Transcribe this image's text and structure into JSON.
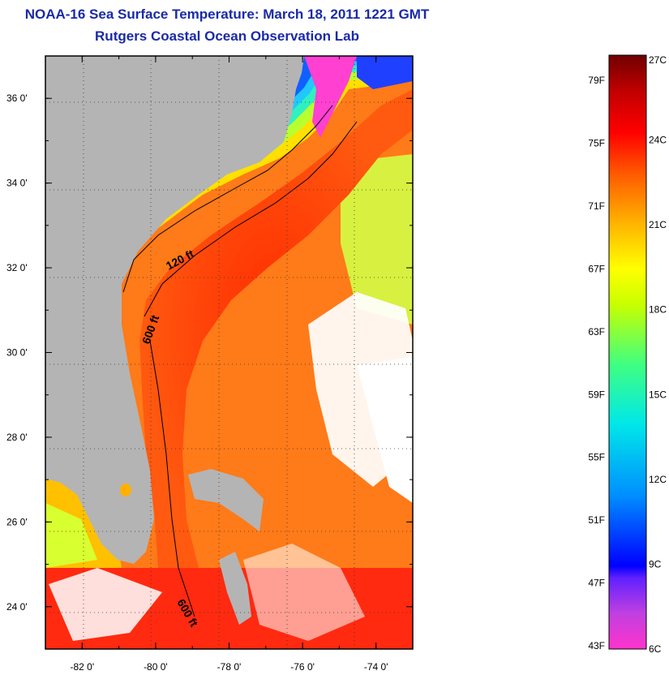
{
  "title": "NOAA-16 Sea Surface Temperature:  March 18, 2011 1221 GMT",
  "subtitle": "Rutgers Coastal Ocean Observation Lab",
  "map": {
    "lon_range": [
      -83.0,
      -73.0
    ],
    "lat_range": [
      23.0,
      37.0
    ],
    "lon_ticks": [
      -82,
      -80,
      -78,
      -76,
      -74
    ],
    "lon_tick_labels": [
      "-82 0'",
      "-80 0'",
      "-78 0'",
      "-76 0'",
      "-74 0'"
    ],
    "lat_ticks": [
      24,
      26,
      28,
      30,
      32,
      34,
      36
    ],
    "lat_tick_labels": [
      "24 0'",
      "26 0'",
      "28 0'",
      "30 0'",
      "32 0'",
      "34 0'",
      "36 0'"
    ],
    "contour_labels": {
      "c120": "120 ft",
      "c600a": "600 ft",
      "c600b": "600 ft"
    },
    "land_color": "#b4b4b4"
  },
  "colorbar": {
    "fahrenheit": [
      {
        "value": 79,
        "label": "79F"
      },
      {
        "value": 75,
        "label": "75F"
      },
      {
        "value": 71,
        "label": "71F"
      },
      {
        "value": 67,
        "label": "67F"
      },
      {
        "value": 63,
        "label": "63F"
      },
      {
        "value": 59,
        "label": "59F"
      },
      {
        "value": 55,
        "label": "55F"
      },
      {
        "value": 51,
        "label": "51F"
      },
      {
        "value": 47,
        "label": "47F"
      },
      {
        "value": 43,
        "label": "43F"
      }
    ],
    "celsius": [
      {
        "value": 27,
        "label": "27C"
      },
      {
        "value": 24,
        "label": "24C"
      },
      {
        "value": 21,
        "label": "21C"
      },
      {
        "value": 18,
        "label": "18C"
      },
      {
        "value": 15,
        "label": "15C"
      },
      {
        "value": 12,
        "label": "12C"
      },
      {
        "value": 9,
        "label": "9C"
      },
      {
        "value": 6,
        "label": "6C"
      }
    ],
    "celsius_range": [
      6,
      27
    ],
    "stops": [
      "#ff33cc",
      "#8a2be2",
      "#0000ff",
      "#0090ff",
      "#00e0e0",
      "#30ff90",
      "#c8ff00",
      "#ffff00",
      "#ffa000",
      "#ff3c00",
      "#ff0000",
      "#c00000",
      "#7a0000"
    ]
  }
}
